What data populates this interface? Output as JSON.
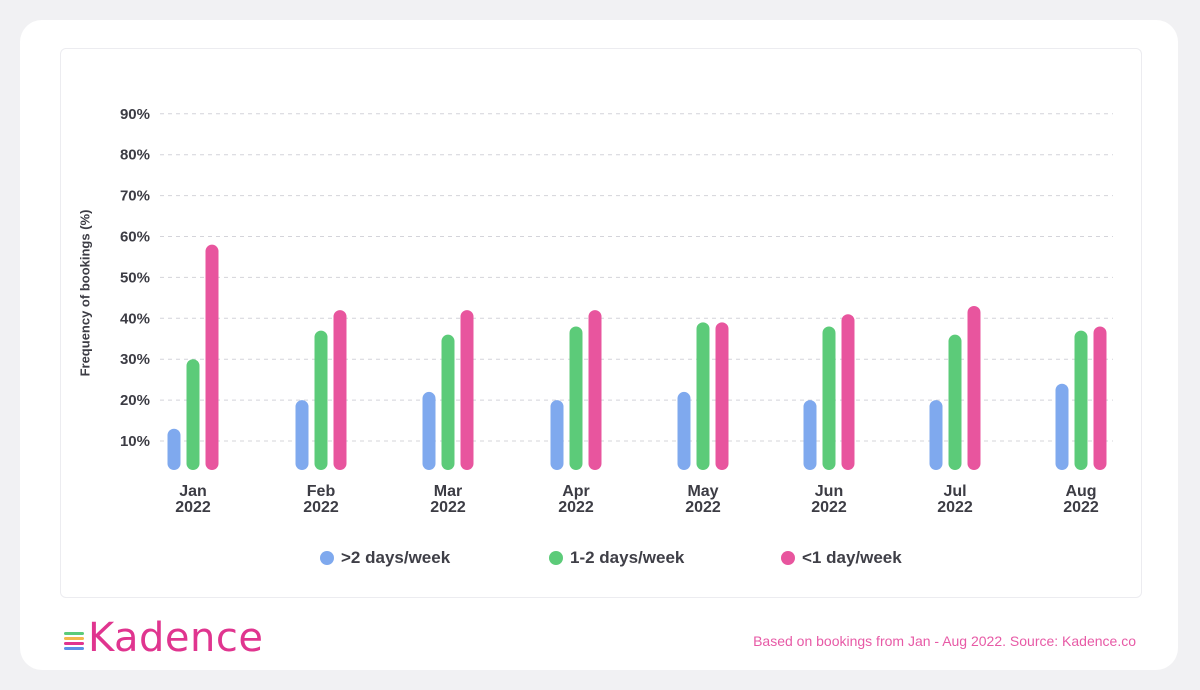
{
  "chart_data": {
    "type": "bar",
    "title": "",
    "xlabel": "",
    "ylabel": "Frequency of bookings (%)",
    "ylim": [
      0,
      90
    ],
    "yticks": [
      "10%",
      "20%",
      "30%",
      "40%",
      "50%",
      "60%",
      "70%",
      "80%",
      "90%"
    ],
    "grid": true,
    "legend_position": "bottom",
    "categories": [
      [
        "Jan",
        "2022"
      ],
      [
        "Feb",
        "2022"
      ],
      [
        "Mar",
        "2022"
      ],
      [
        "Apr",
        "2022"
      ],
      [
        "May",
        "2022"
      ],
      [
        "Jun",
        "2022"
      ],
      [
        "Jul",
        "2022"
      ],
      [
        "Aug",
        "2022"
      ]
    ],
    "series": [
      {
        "name": ">2 days/week",
        "color": "#7fa9ee",
        "values": [
          13,
          20,
          22,
          20,
          22,
          20,
          20,
          24
        ]
      },
      {
        "name": "1-2 days/week",
        "color": "#5ccb79",
        "values": [
          30,
          37,
          36,
          38,
          39,
          38,
          36,
          37
        ]
      },
      {
        "name": "<1 day/week",
        "color": "#e8559e",
        "values": [
          58,
          42,
          42,
          42,
          39,
          41,
          43,
          38
        ]
      }
    ]
  },
  "legend": [
    {
      "label": ">2 days/week",
      "color": "#7fa9ee"
    },
    {
      "label": "1-2 days/week",
      "color": "#5ccb79"
    },
    {
      "label": "<1 day/week",
      "color": "#e8559e"
    }
  ],
  "brand": {
    "name": "Kadence",
    "icon": "kadence-lines-icon",
    "color": "#e0358f"
  },
  "footnote": "Based on bookings from Jan - Aug 2022. Source: Kadence.co"
}
